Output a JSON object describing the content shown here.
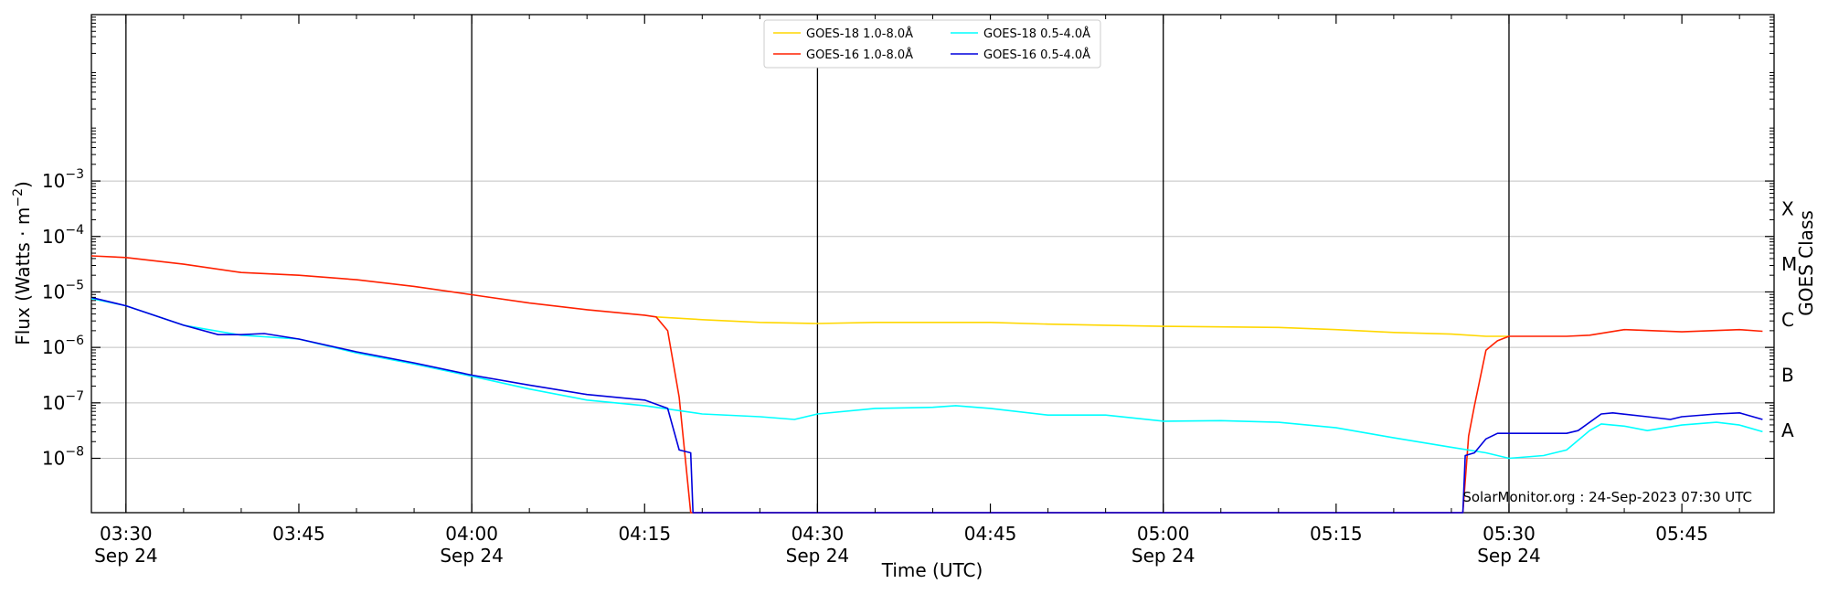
{
  "chart_data": {
    "type": "line",
    "xlabel": "Time (UTC)",
    "ylabel_text": "Flux (Watts · m",
    "ylabel_sup": "−2",
    "ylabel_close": ")",
    "right_label": "GOES Class",
    "credit": "SolarMonitor.org : 24-Sep-2023 07:30 UTC",
    "x_range": [
      "03:27",
      "05:53"
    ],
    "y_log_range": [
      -8.98,
      0.0
    ],
    "y_scale": "log",
    "grid": "horizontal",
    "legend_position": "top-center",
    "date_label": "Sep 24",
    "x_ticks_major": [
      {
        "t": "03:30",
        "label": "03:30",
        "date": "Sep 24"
      },
      {
        "t": "03:45",
        "label": "03:45",
        "date": ""
      },
      {
        "t": "04:00",
        "label": "04:00",
        "date": "Sep 24"
      },
      {
        "t": "04:15",
        "label": "04:15",
        "date": ""
      },
      {
        "t": "04:30",
        "label": "04:30",
        "date": "Sep 24"
      },
      {
        "t": "04:45",
        "label": "04:45",
        "date": ""
      },
      {
        "t": "05:00",
        "label": "05:00",
        "date": "Sep 24"
      },
      {
        "t": "05:15",
        "label": "05:15",
        "date": ""
      },
      {
        "t": "05:30",
        "label": "05:30",
        "date": "Sep 24"
      },
      {
        "t": "05:45",
        "label": "05:45",
        "date": ""
      }
    ],
    "vertical_lines": [
      "03:30",
      "04:00",
      "04:30",
      "05:00",
      "05:30"
    ],
    "y_ticks": [
      {
        "exp": -3,
        "base": "10",
        "sup": "−3"
      },
      {
        "exp": -4,
        "base": "10",
        "sup": "−4"
      },
      {
        "exp": -5,
        "base": "10",
        "sup": "−5"
      },
      {
        "exp": -6,
        "base": "10",
        "sup": "−6"
      },
      {
        "exp": -7,
        "base": "10",
        "sup": "−7"
      },
      {
        "exp": -8,
        "base": "10",
        "sup": "−8"
      }
    ],
    "goes_classes": [
      {
        "label": "X",
        "exp": -3.5
      },
      {
        "label": "M",
        "exp": -4.5
      },
      {
        "label": "C",
        "exp": -5.5
      },
      {
        "label": "B",
        "exp": -6.5
      },
      {
        "label": "A",
        "exp": -7.5
      }
    ],
    "series": [
      {
        "name": "GOES-18 1.0-8.0Å",
        "color": "#FFD700",
        "points": [
          [
            "04:16",
            -5.45
          ],
          [
            "04:20",
            -5.5
          ],
          [
            "04:25",
            -5.55
          ],
          [
            "04:30",
            -5.57
          ],
          [
            "04:35",
            -5.55
          ],
          [
            "04:40",
            -5.55
          ],
          [
            "04:45",
            -5.55
          ],
          [
            "04:50",
            -5.58
          ],
          [
            "04:55",
            -5.6
          ],
          [
            "05:00",
            -5.62
          ],
          [
            "05:05",
            -5.63
          ],
          [
            "05:10",
            -5.64
          ],
          [
            "05:15",
            -5.68
          ],
          [
            "05:20",
            -5.73
          ],
          [
            "05:25",
            -5.76
          ],
          [
            "05:28",
            -5.8
          ],
          [
            "05:30",
            -5.8
          ]
        ]
      },
      {
        "name": "GOES-16 1.0-8.0Å",
        "color": "#FF2000",
        "points": [
          [
            "03:27",
            -4.35
          ],
          [
            "03:30",
            -4.38
          ],
          [
            "03:35",
            -4.5
          ],
          [
            "03:40",
            -4.65
          ],
          [
            "03:45",
            -4.7
          ],
          [
            "03:50",
            -4.78
          ],
          [
            "03:55",
            -4.9
          ],
          [
            "04:00",
            -5.05
          ],
          [
            "04:05",
            -5.2
          ],
          [
            "04:10",
            -5.32
          ],
          [
            "04:15",
            -5.42
          ],
          [
            "04:16",
            -5.45
          ],
          [
            "04:17",
            -5.7
          ],
          [
            "04:18",
            -6.9
          ],
          [
            "04:19",
            -8.98
          ],
          [
            "05:26",
            -8.98
          ],
          [
            "05:26.5",
            -7.6
          ],
          [
            "05:27",
            -7.05
          ],
          [
            "05:28",
            -6.05
          ],
          [
            "05:29",
            -5.88
          ],
          [
            "05:30",
            -5.8
          ],
          [
            "05:35",
            -5.8
          ],
          [
            "05:37",
            -5.78
          ],
          [
            "05:40",
            -5.68
          ],
          [
            "05:45",
            -5.72
          ],
          [
            "05:50",
            -5.68
          ],
          [
            "05:52",
            -5.71
          ]
        ]
      },
      {
        "name": "GOES-18 0.5-4.0Å",
        "color": "#00FFFF",
        "points": [
          [
            "03:27",
            -5.12
          ],
          [
            "03:30",
            -5.25
          ],
          [
            "03:35",
            -5.6
          ],
          [
            "03:40",
            -5.78
          ],
          [
            "03:45",
            -5.85
          ],
          [
            "03:50",
            -6.1
          ],
          [
            "03:55",
            -6.3
          ],
          [
            "04:00",
            -6.52
          ],
          [
            "04:05",
            -6.75
          ],
          [
            "04:10",
            -6.95
          ],
          [
            "04:15",
            -7.05
          ],
          [
            "04:20",
            -7.2
          ],
          [
            "04:25",
            -7.25
          ],
          [
            "04:28",
            -7.3
          ],
          [
            "04:30",
            -7.2
          ],
          [
            "04:35",
            -7.1
          ],
          [
            "04:40",
            -7.08
          ],
          [
            "04:42",
            -7.05
          ],
          [
            "04:45",
            -7.1
          ],
          [
            "04:50",
            -7.22
          ],
          [
            "04:55",
            -7.22
          ],
          [
            "05:00",
            -7.33
          ],
          [
            "05:05",
            -7.32
          ],
          [
            "05:10",
            -7.35
          ],
          [
            "05:15",
            -7.45
          ],
          [
            "05:20",
            -7.63
          ],
          [
            "05:25",
            -7.8
          ],
          [
            "05:28",
            -7.9
          ],
          [
            "05:30",
            -8.0
          ],
          [
            "05:33",
            -7.95
          ],
          [
            "05:35",
            -7.85
          ],
          [
            "05:37",
            -7.5
          ],
          [
            "05:38",
            -7.38
          ],
          [
            "05:40",
            -7.42
          ],
          [
            "05:42",
            -7.5
          ],
          [
            "05:45",
            -7.4
          ],
          [
            "05:48",
            -7.35
          ],
          [
            "05:50",
            -7.4
          ],
          [
            "05:52",
            -7.52
          ]
        ]
      },
      {
        "name": "GOES-16 0.5-4.0Å",
        "color": "#0000DD",
        "points": [
          [
            "03:27",
            -5.1
          ],
          [
            "03:30",
            -5.25
          ],
          [
            "03:35",
            -5.6
          ],
          [
            "03:38",
            -5.77
          ],
          [
            "03:40",
            -5.77
          ],
          [
            "03:42",
            -5.75
          ],
          [
            "03:45",
            -5.85
          ],
          [
            "03:50",
            -6.08
          ],
          [
            "03:55",
            -6.28
          ],
          [
            "04:00",
            -6.5
          ],
          [
            "04:05",
            -6.68
          ],
          [
            "04:10",
            -6.85
          ],
          [
            "04:15",
            -6.95
          ],
          [
            "04:17",
            -7.1
          ],
          [
            "04:18",
            -7.85
          ],
          [
            "04:19",
            -7.9
          ],
          [
            "04:19.2",
            -8.98
          ],
          [
            "05:26",
            -8.98
          ],
          [
            "05:26.2",
            -7.95
          ],
          [
            "05:27",
            -7.9
          ],
          [
            "05:28",
            -7.65
          ],
          [
            "05:29",
            -7.55
          ],
          [
            "05:30",
            -7.55
          ],
          [
            "05:35",
            -7.55
          ],
          [
            "05:36",
            -7.5
          ],
          [
            "05:38",
            -7.2
          ],
          [
            "05:39",
            -7.18
          ],
          [
            "05:42",
            -7.25
          ],
          [
            "05:44",
            -7.3
          ],
          [
            "05:45",
            -7.25
          ],
          [
            "05:48",
            -7.2
          ],
          [
            "05:50",
            -7.18
          ],
          [
            "05:52",
            -7.3
          ]
        ]
      }
    ]
  }
}
